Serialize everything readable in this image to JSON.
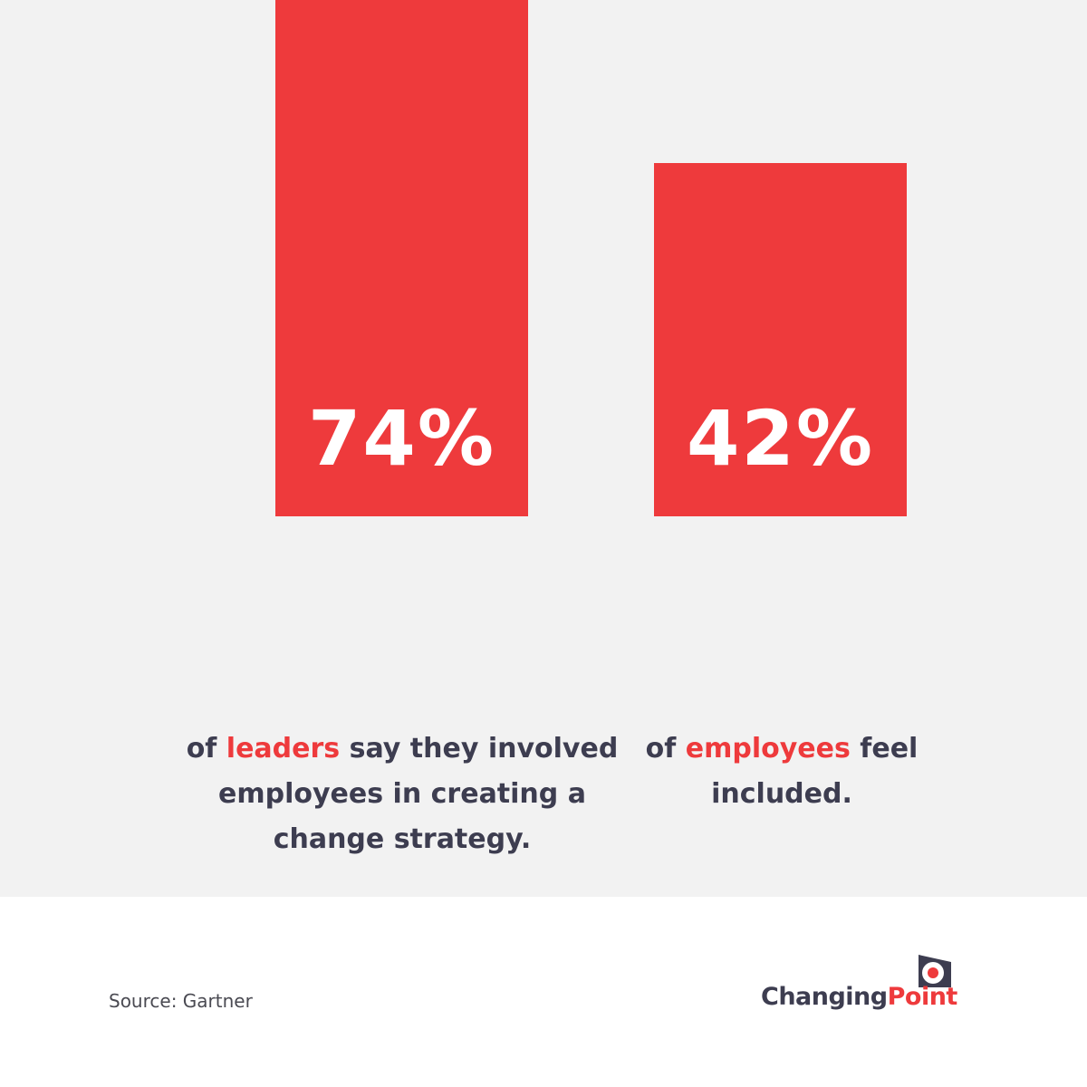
{
  "chart_data": {
    "type": "bar",
    "categories": [
      "leaders",
      "employees"
    ],
    "values": [
      74,
      42
    ],
    "value_labels": [
      "74%",
      "42%"
    ],
    "ylim": [
      0,
      74
    ],
    "grid": false,
    "bar_color": "#ee3a3c",
    "captions": [
      {
        "before": "of ",
        "highlight": "leaders",
        "after": " say they involved employees in creating a change strategy."
      },
      {
        "before": "of ",
        "highlight": "employees",
        "after": " feel included."
      }
    ]
  },
  "source": "Source: Gartner",
  "logo": {
    "word_1": "Changing",
    "word_2": "Point",
    "icon": "logo-mark-icon"
  },
  "colors": {
    "accent": "#ee3a3c",
    "text_dark": "#3d3d50",
    "panel_background": "#f2f2f2"
  }
}
